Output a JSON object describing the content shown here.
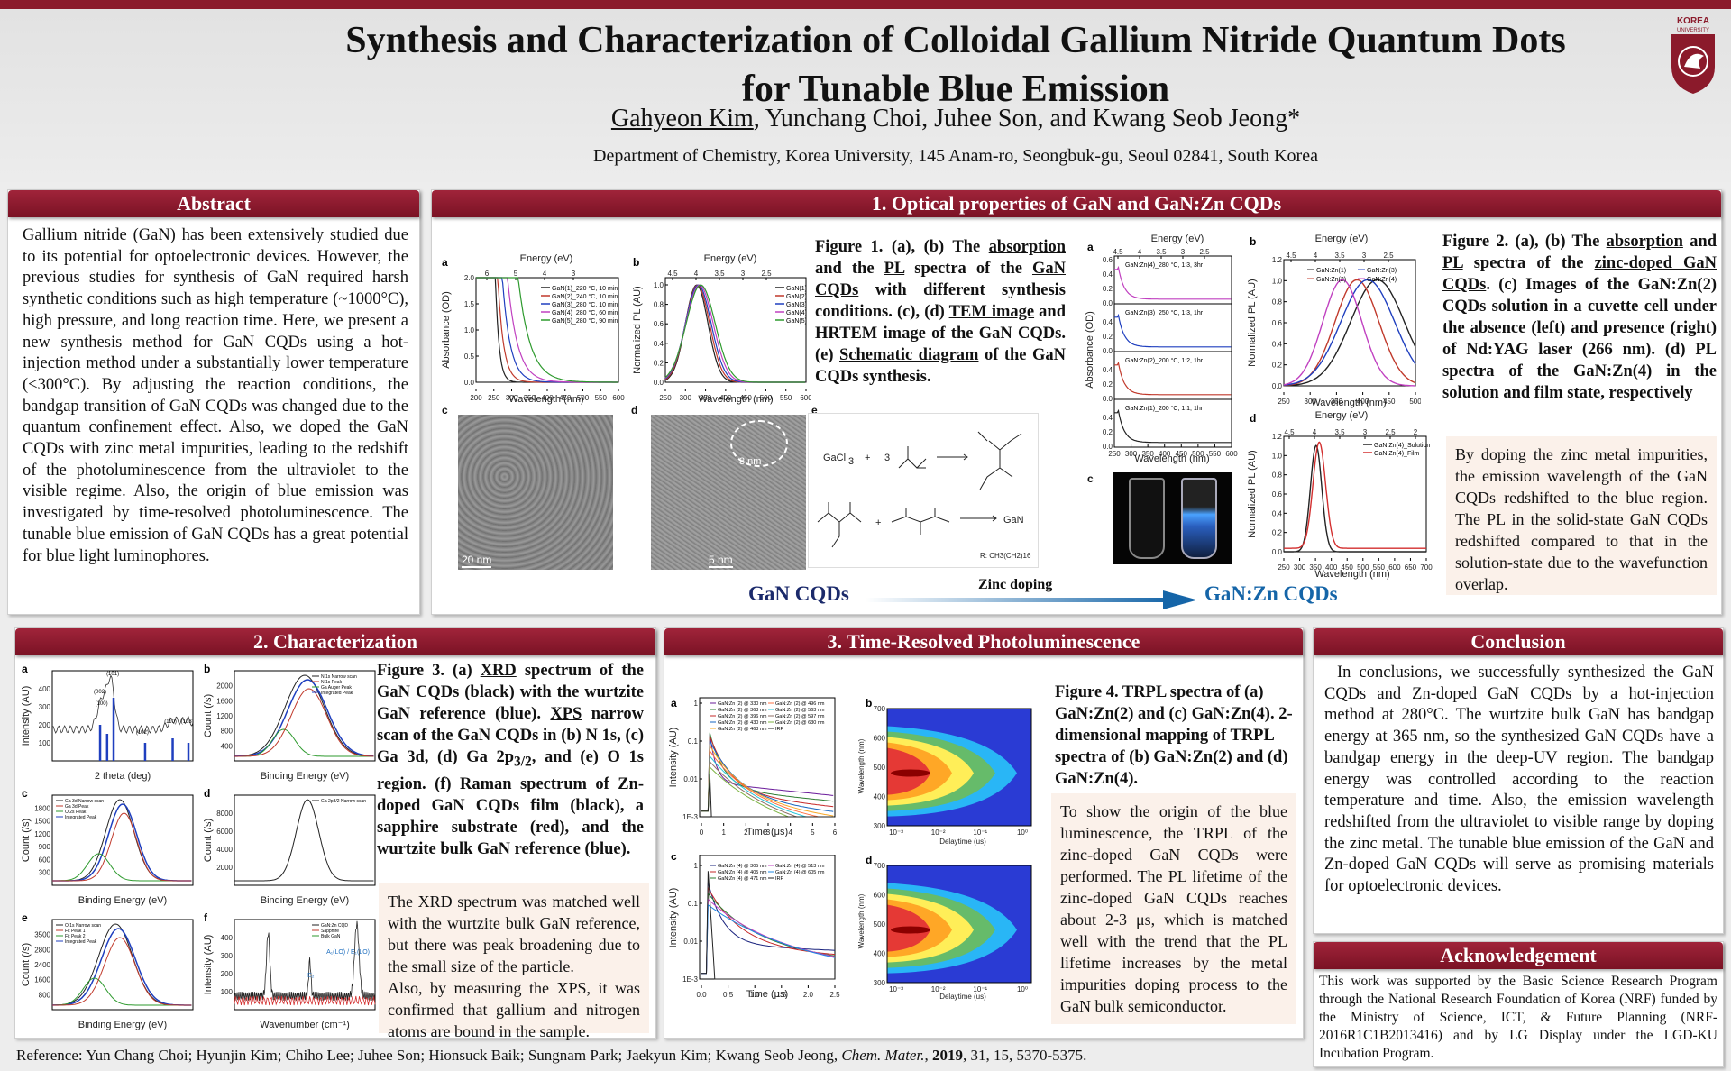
{
  "header": {
    "title_line1": "Synthesis and Characterization of Colloidal Gallium Nitride Quantum Dots",
    "title_line2": "for Tunable Blue Emission",
    "author_first": "Gahyeon Kim",
    "authors_rest": ", Yunchang Choi, Juhee Son, and Kwang Seob Jeong*",
    "department": "Department of Chemistry, Korea University, 145 Anam-ro, Seongbuk-gu, Seoul 02841, South Korea",
    "logo_text_top": "KOREA",
    "logo_text_bottom": "UNIVERSITY"
  },
  "abstract": {
    "heading": "Abstract",
    "text": "Gallium nitride (GaN) has been extensively studied due to its potential for optoelectronic devices. However, the previous studies for synthesis of GaN required harsh synthetic conditions such as high temperature (~1000°C), high pressure, and long reaction time. Here, we present a new synthesis method for GaN CQDs using a hot-injection method under a substantially lower temperature (<300°C). By adjusting the reaction conditions, the bandgap transition of GaN CQDs was changed due to the quantum confinement effect. Also, we doped the GaN CQDs with zinc metal impurities, leading to the redshift of the photoluminescence from the ultraviolet to the visible regime. Also, the origin of blue emission was investigated by time-resolved photoluminescence. The tunable blue emission of GaN CQDs has a great potential for blue light luminophores."
  },
  "optical": {
    "heading": "1. Optical properties of GaN and GaN:Zn CQDs",
    "fig1_caption_parts": [
      "Figure 1. (a), (b) The ",
      "absorption",
      " and the ",
      "PL",
      " spectra of the ",
      "GaN CQDs",
      " with different synthesis conditions. (c), (d) ",
      "TEM image",
      " and HRTEM image of the GaN CQDs. (e) ",
      "Schematic diagram",
      " of the GaN CQDs synthesis."
    ],
    "fig2_caption_parts": [
      "Figure 2. (a), (b) The ",
      "absorption",
      " and ",
      "PL",
      " spectra of the ",
      "zinc-doped GaN CQDs",
      ". (c) Images of the GaN:Zn(2) CQDs solution in a cuvette cell under the absence (left) and presence (right) of Nd:YAG laser (266 nm). (d) PL spectra of the GaN:Zn(4) in the solution and film state, respectively"
    ],
    "note": "By doping the zinc metal impurities, the emission wavelength of the GaN CQDs redshifted to the blue region. The PL in the solid-state GaN CQDs redshifted compared to that in the solution-state due to the wavefunction overlap.",
    "arrow_left": "GaN CQDs",
    "arrow_mid": "Zinc doping",
    "arrow_right": "GaN:Zn CQDs",
    "panel_a": {
      "label": "a",
      "top_axis": "Energy (eV)",
      "xlabel": "Wavelength (nm)",
      "ylabel": "Absorbance (OD)",
      "xticks": [
        "200",
        "250",
        "300",
        "350",
        "400",
        "450",
        "500",
        "550",
        "600"
      ],
      "top_ticks": [
        "6",
        "5",
        "4",
        "3"
      ],
      "yticks": [
        "0.0",
        "0.5",
        "1.0",
        "1.5",
        "2.0"
      ],
      "legend": [
        "GaN(1)_220 °C, 10 min",
        "GaN(2)_240 °C, 10 min",
        "GaN(3)_280 °C, 10 min",
        "GaN(4)_280 °C, 60 min",
        "GaN(5)_280 °C, 90 min"
      ]
    },
    "panel_b": {
      "label": "b",
      "top_axis": "Energy (eV)",
      "xlabel": "Wavelength (nm)",
      "ylabel": "Normalized PL (AU)",
      "xticks": [
        "250",
        "300",
        "350",
        "400",
        "450",
        "500",
        "550",
        "600"
      ],
      "top_ticks": [
        "4.5",
        "4",
        "3.5",
        "3",
        "2.5"
      ],
      "yticks": [
        "0.0",
        "0.2",
        "0.4",
        "0.6",
        "0.8",
        "1.0"
      ],
      "legend": [
        "GaN(1)",
        "GaN(2)",
        "GaN(3)",
        "GaN(4)",
        "GaN(5)"
      ]
    },
    "panel_c": {
      "label": "c",
      "scale": "20 nm"
    },
    "panel_d": {
      "label": "d",
      "scale": "5 nm",
      "inset_scale": "3 nm"
    },
    "panel_e": {
      "label": "e",
      "reagent1": "GaCl",
      "reagent1_sub": "3",
      "plus": "+",
      "three": "3",
      "product": "GaN",
      "r_note": "R: CH3(CH2)16"
    },
    "fig2a": {
      "label": "a",
      "top_axis": "Energy (eV)",
      "xlabel": "Wavelength (nm)",
      "ylabel": "Absorbance (OD)",
      "top_ticks": [
        "4.5",
        "4",
        "3.5",
        "3",
        "2.5"
      ],
      "xticks": [
        "250",
        "300",
        "350",
        "400",
        "450",
        "500",
        "550",
        "600"
      ],
      "traces": [
        "GaN:Zn(4)_280 °C, 1:3, 3hr",
        "GaN:Zn(3)_250 °C, 1:3, 1hr",
        "GaN:Zn(2)_200 °C, 1:2, 1hr",
        "GaN:Zn(1)_200 °C, 1:1, 1hr"
      ],
      "yticks": [
        "0.0",
        "0.2",
        "0.4",
        "0.6"
      ]
    },
    "fig2b": {
      "label": "b",
      "top_axis": "Energy (eV)",
      "xlabel": "Wavelength (nm)",
      "ylabel": "Normalized PL (AU)",
      "top_ticks": [
        "4.5",
        "4",
        "3.5",
        "3",
        "2.5"
      ],
      "xticks": [
        "250",
        "300",
        "350",
        "400",
        "450",
        "500"
      ],
      "yticks": [
        "0.0",
        "0.2",
        "0.4",
        "0.6",
        "0.8",
        "1.0",
        "1.2"
      ],
      "legend": [
        "GaN:Zn(1)",
        "GaN:Zn(2)",
        "GaN:Zn(3)",
        "GaN:Zn(4)"
      ]
    },
    "fig2c": {
      "label": "c"
    },
    "fig2d": {
      "label": "d",
      "top_axis": "Energy (eV)",
      "xlabel": "Wavelength (nm)",
      "ylabel": "Normalized PL (AU)",
      "top_ticks": [
        "4.5",
        "4",
        "3.5",
        "3",
        "2.5",
        "2"
      ],
      "xticks": [
        "250",
        "300",
        "350",
        "400",
        "450",
        "500",
        "550",
        "600",
        "650",
        "700"
      ],
      "yticks": [
        "0.0",
        "0.2",
        "0.4",
        "0.6",
        "0.8",
        "1.0",
        "1.2"
      ],
      "legend": [
        "GaN:Zn(4)_Solution",
        "GaN:Zn(4)_Film"
      ]
    }
  },
  "characterization": {
    "heading": "2. Characterization",
    "caption_parts": [
      "Figure 3. (a) ",
      "XRD",
      " spectrum of the GaN CQDs (black) with the wurtzite GaN reference (blue). ",
      "XPS",
      " narrow scan of the GaN CQDs in (b) N 1s, (c) Ga 3d, (d) Ga 2p",
      "3/2",
      ", and (e) O 1s region. (f) Raman spectrum of Zn-doped GaN CQDs film (black), a sapphire substrate (red), and the wurtzite bulk GaN reference (blue)."
    ],
    "note": "The XRD spectrum was matched well with the wurtzite bulk GaN reference, but there was peak broadening due to the small size of the particle.\nAlso, by measuring the XPS, it was confirmed that gallium and nitrogen atoms are bound in the sample.",
    "panels": [
      {
        "label": "a",
        "xlabel": "2 theta (deg)",
        "ylabel": "Intensity (AU)",
        "peaks": [
          "(101)",
          "(002)",
          "(100)",
          "(102)",
          "(110)",
          "(103)"
        ],
        "yticks": [
          "100",
          "200",
          "300",
          "400"
        ]
      },
      {
        "label": "b",
        "xlabel": "Binding Energy (eV)",
        "ylabel": "Count (/s)",
        "legend": [
          "N 1s Narrow scan",
          "N 1s Peak",
          "Ga Auger Peak",
          "Integrated Peak"
        ],
        "yticks": [
          "400",
          "800",
          "1200",
          "1600",
          "2000"
        ]
      },
      {
        "label": "c",
        "xlabel": "Binding Energy (eV)",
        "ylabel": "Count (/s)",
        "legend": [
          "Ga 3d Narrow scan",
          "Ga 3d Peak",
          "O 2s Peak",
          "Integrated Peak"
        ],
        "yticks": [
          "300",
          "600",
          "900",
          "1200",
          "1500",
          "1800"
        ]
      },
      {
        "label": "d",
        "xlabel": "Binding Energy (eV)",
        "ylabel": "Count (/s)",
        "legend": [
          "Ga 2p3/2 Narrow scan"
        ],
        "yticks": [
          "2000",
          "4000",
          "6000",
          "8000"
        ]
      },
      {
        "label": "e",
        "xlabel": "Binding Energy (eV)",
        "ylabel": "Count (/s)",
        "legend": [
          "O 1s Narrow scan",
          "Fit Peak 1",
          "Fit Peak 2",
          "Integrated Peak"
        ],
        "yticks": [
          "800",
          "1600",
          "2400",
          "2800",
          "3500"
        ]
      },
      {
        "label": "f",
        "xlabel": "Wavenumber (cm⁻¹)",
        "ylabel": "Intensity (AU)",
        "legend": [
          "GaN:Zn CQD",
          "Sapphire",
          "Bulk GaN"
        ],
        "annot1": "A₁(LO) / E₁(LO)",
        "annot2": "E₂",
        "yticks": [
          "100",
          "200",
          "300",
          "400"
        ]
      }
    ]
  },
  "trpl": {
    "heading": "3. Time-Resolved Photoluminescence",
    "caption": "Figure 4. TRPL spectra of (a) GaN:Zn(2) and (c) GaN:Zn(4). 2-dimensional mapping of TRPL spectra of (b) GaN:Zn(2) and (d) GaN:Zn(4).",
    "note": "To show the origin of the blue luminescence, the TRPL of the zinc-doped GaN CQDs were performed. The PL lifetime of the zinc-doped GaN CQDs reaches about 2-3 μs, which is matched well with the trend that the PL lifetime increases by the metal impurities doping process to the GaN bulk semiconductor.",
    "panel_a": {
      "label": "a",
      "xlabel": "Time (μs)",
      "ylabel": "Intensity (AU)",
      "legend": [
        "GaN:Zn (2) @ 330 nm",
        "GaN:Zn (2) @ 363 nm",
        "GaN:Zn (2) @ 396 nm",
        "GaN:Zn (2) @ 430 nm",
        "GaN:Zn (2) @ 463 nm",
        "GaN:Zn (2) @ 496 nm",
        "GaN:Zn (2) @ 563 nm",
        "GaN:Zn (2) @ 597 nm",
        "GaN:Zn (2) @ 630 nm",
        "IRF"
      ],
      "xticks": [
        "0",
        "1",
        "2",
        "3",
        "4",
        "5",
        "6"
      ],
      "yticks": [
        "1E-3",
        "0.01",
        "0.1",
        "1"
      ]
    },
    "panel_b": {
      "label": "b",
      "xlabel": "Delaytime (us)",
      "ylabel": "Wavelength (nm)",
      "yticks": [
        "300",
        "400",
        "500",
        "600",
        "700"
      ],
      "xticks": [
        "10⁻³",
        "10⁻²",
        "10⁻¹",
        "10⁰"
      ]
    },
    "panel_c": {
      "label": "c",
      "xlabel": "Time (μs)",
      "ylabel": "Intensity (AU)",
      "legend": [
        "GaN:Zn (4) @ 305 nm",
        "GaN:Zn (4) @ 405 nm",
        "GaN:Zn (4) @ 471 nm",
        "GaN:Zn (4) @ 513 nm",
        "GaN:Zn (4) @ 605 nm",
        "IRF"
      ],
      "xticks": [
        "0.0",
        "0.5",
        "1.0",
        "1.5",
        "2.0",
        "2.5"
      ],
      "yticks": [
        "1E-3",
        "0.01",
        "0.1",
        "1"
      ]
    },
    "panel_d": {
      "label": "d",
      "xlabel": "Delaytime (us)",
      "ylabel": "Wavelength (nm)",
      "yticks": [
        "300",
        "400",
        "500",
        "600",
        "700"
      ],
      "xticks": [
        "10⁻³",
        "10⁻²",
        "10⁻¹",
        "10⁰"
      ]
    }
  },
  "conclusion": {
    "heading": "Conclusion",
    "text": "In conclusions, we successfully synthesized the GaN CQDs and Zn-doped GaN CQDs by a hot-injection method at 280°C. The wurtzite bulk GaN has bandgap energy at 365 nm, so the synthesized GaN CQDs have a bandgap energy in the deep-UV region. The bandgap energy was controlled according to the reaction temperature and time. Also, the emission wavelength redshifted from the ultraviolet to visible range by doping the zinc metal. The tunable blue emission of the GaN and Zn-doped GaN CQDs will serve as promising materials for optoelectronic devices."
  },
  "acknowledgement": {
    "heading": "Acknowledgement",
    "text": "This work was supported by the Basic Science Research Program through the National Research Foundation of Korea (NRF) funded by the Ministry of Science, ICT, & Future Planning (NRF-2016R1C1B2013416) and by LG Display under the LGD-KU Incubation Program."
  },
  "reference": {
    "prefix": "Reference: Yun Chang Choi; Hyunjin Kim; Chiho Lee; Juhee Son; Hionsuck Baik; Sungnam Park; Jaekyun Kim; Kwang Seob Jeong, ",
    "journal": "Chem. Mater.",
    "sep": ", ",
    "year": "2019",
    "suffix": ", 31, 15, 5370-5375."
  },
  "colors": {
    "accent": "#8b1a2b",
    "note_bg": "#fbf1ea",
    "arrow_text": "#1b2a6b",
    "arrow": "#1565a8"
  }
}
